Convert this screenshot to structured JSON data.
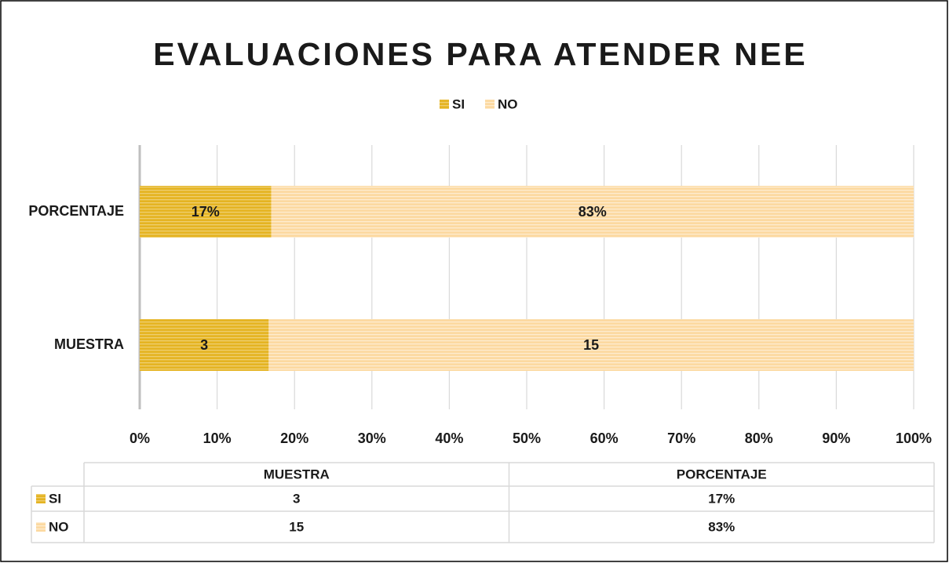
{
  "chart_data": {
    "type": "bar",
    "orientation": "horizontal",
    "stacked": "percent",
    "title": "EVALUACIONES PARA ATENDER NEE",
    "categories": [
      "MUESTRA",
      "PORCENTAJE"
    ],
    "series": [
      {
        "name": "SI",
        "color": "#e5b422",
        "values": [
          3,
          17
        ],
        "value_labels": [
          "3",
          "17%"
        ]
      },
      {
        "name": "NO",
        "color": "#fcd9a0",
        "values": [
          15,
          83
        ],
        "value_labels": [
          "15",
          "83%"
        ]
      }
    ],
    "xlim": [
      0,
      100
    ],
    "xticks": [
      {
        "value": 0,
        "label": "0%"
      },
      {
        "value": 10,
        "label": "10%"
      },
      {
        "value": 20,
        "label": "20%"
      },
      {
        "value": 30,
        "label": "30%"
      },
      {
        "value": 40,
        "label": "40%"
      },
      {
        "value": 50,
        "label": "50%"
      },
      {
        "value": 60,
        "label": "60%"
      },
      {
        "value": 70,
        "label": "70%"
      },
      {
        "value": 80,
        "label": "80%"
      },
      {
        "value": 90,
        "label": "90%"
      },
      {
        "value": 100,
        "label": "100%"
      }
    ],
    "grid": true,
    "legend": "top",
    "data_table": true
  }
}
